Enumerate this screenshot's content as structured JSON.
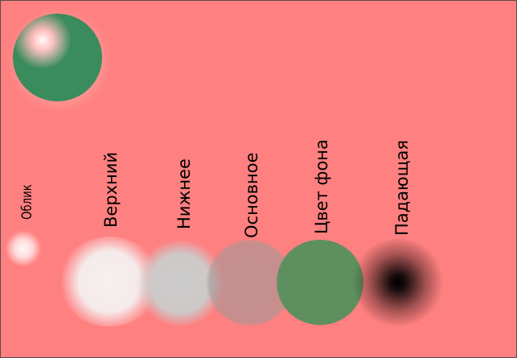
{
  "canvas": {
    "background_color": "#ff8080"
  },
  "result": {
    "sphere_color": "#3a8c5c",
    "highlight_color": "#ffffff"
  },
  "layers": [
    {
      "id": "oblik",
      "label": "Облик",
      "color": "#ffffff"
    },
    {
      "id": "verkhniy",
      "label": "Верхний",
      "color": "#f5f0f0"
    },
    {
      "id": "nizhnee",
      "label": "Нижнее",
      "color": "#cccccc"
    },
    {
      "id": "osnovnoe",
      "label": "Основное",
      "color": "#9a9a9a"
    },
    {
      "id": "tsvet-fona",
      "label": "Цвет фона",
      "color": "#5e8f5e"
    },
    {
      "id": "padayushchaya",
      "label": "Падающая",
      "color": "#000000"
    }
  ]
}
